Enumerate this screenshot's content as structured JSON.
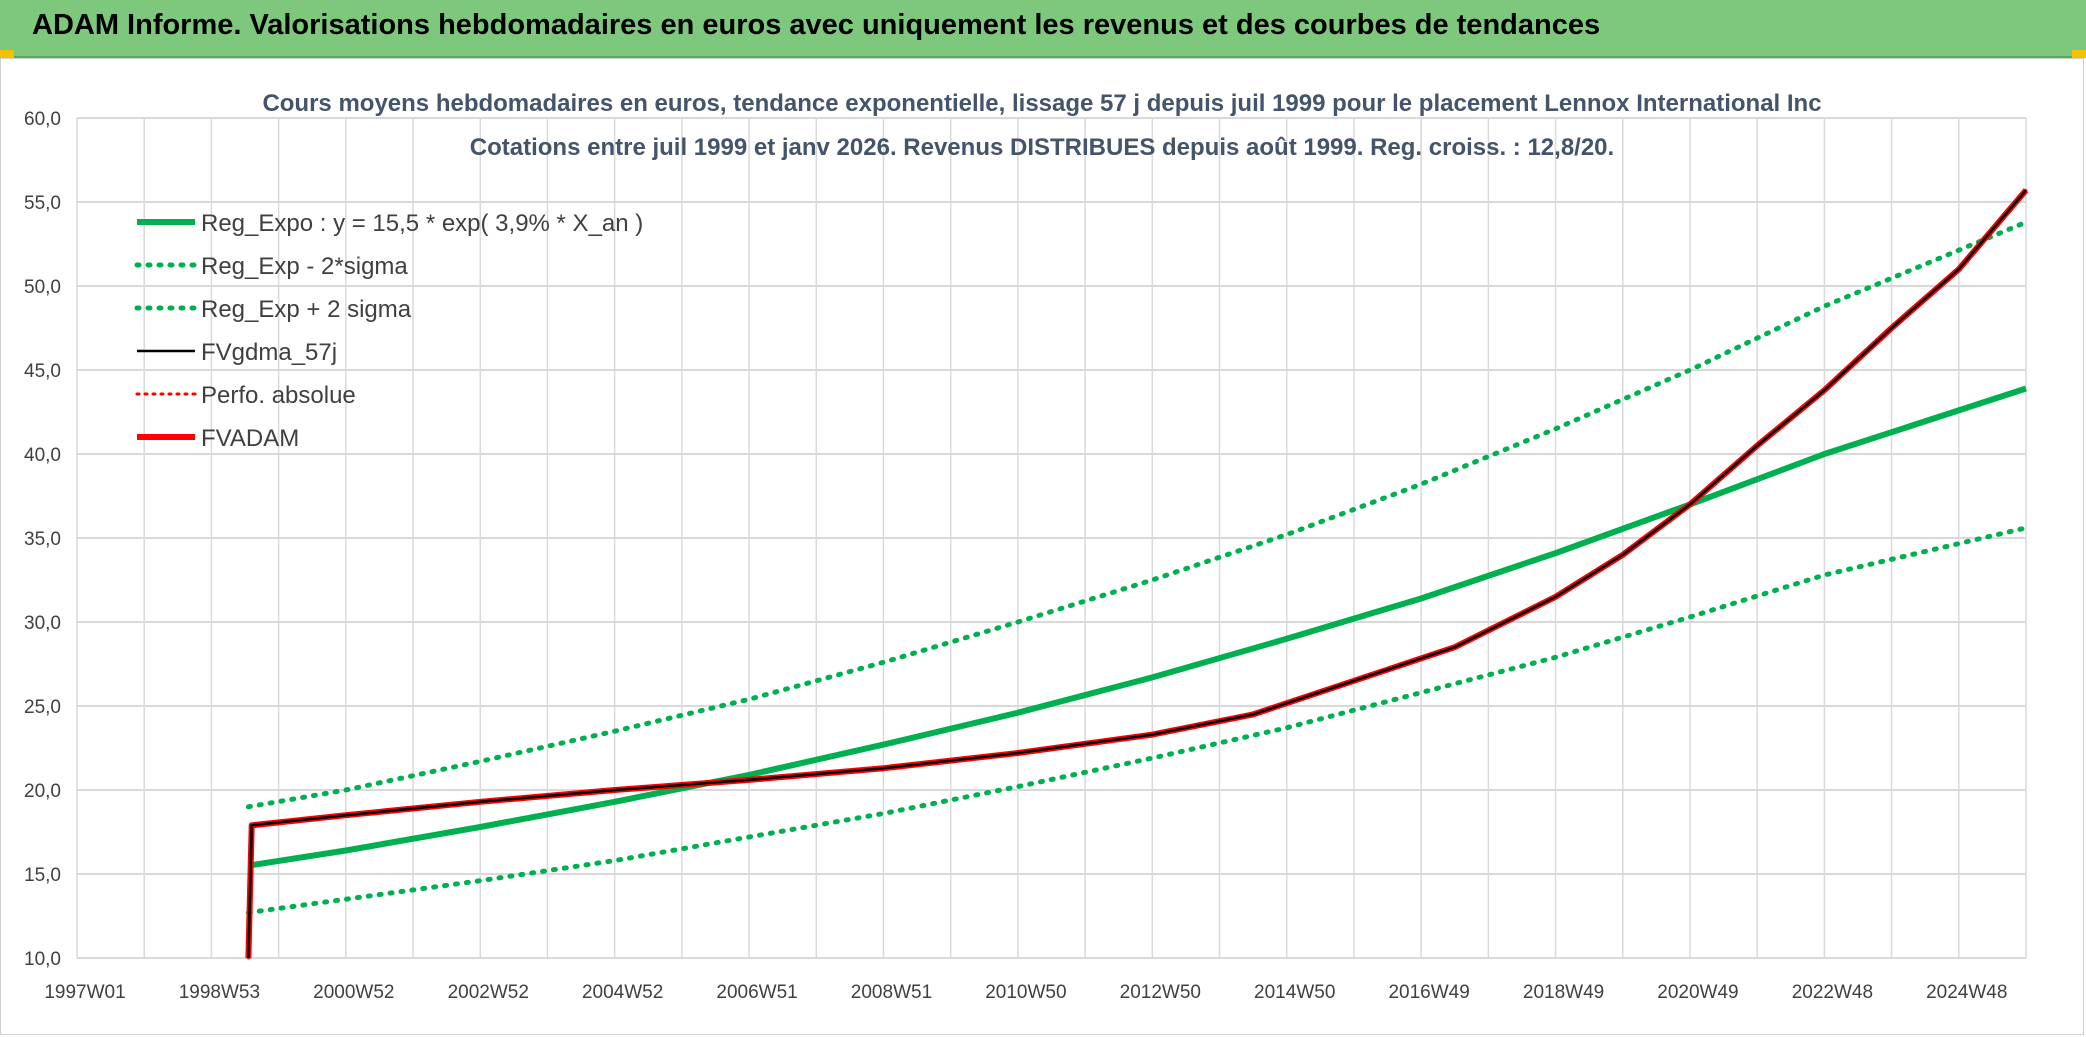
{
  "header": {
    "title": "ADAM Informe. Valorisations hebdomadaires en euros avec uniquement les revenus et des courbes de tendances"
  },
  "colors": {
    "header_bg": "#7dc87d",
    "green": "#00b050",
    "red": "#ff0000",
    "black": "#000000",
    "grid": "#d9d9d9"
  },
  "chart_data": {
    "type": "line",
    "title": "Cours moyens hebdomadaires en euros, tendance exponentielle, lissage 57 j depuis juil 1999 pour le placement Lennox International Inc",
    "subtitle": "Cotations entre juil 1999 et janv 2026. Revenus DISTRIBUES depuis août 1999. Reg. croiss. : 12,8/20.",
    "xlabel": "",
    "ylabel": "",
    "xlim": [
      1997.0,
      2026.0
    ],
    "ylim": [
      10,
      60
    ],
    "grid": true,
    "legend_position": "top-left",
    "y_ticks": [
      "10,0",
      "15,0",
      "20,0",
      "25,0",
      "30,0",
      "35,0",
      "40,0",
      "45,0",
      "50,0",
      "55,0",
      "60,0"
    ],
    "x_ticks": [
      "1997W01",
      "1998W53",
      "2000W52",
      "2002W52",
      "2004W52",
      "2006W51",
      "2008W51",
      "2010W50",
      "2012W50",
      "2014W50",
      "2016W49",
      "2018W49",
      "2020W49",
      "2022W48",
      "2024W48"
    ],
    "series": [
      {
        "name": "Reg_Expo : y = 15,5 * exp( 3,9% *  X_an )",
        "style": "solid-green",
        "x": [
          1999.55,
          2001.0,
          2003.0,
          2005.0,
          2007.0,
          2009.0,
          2011.0,
          2013.0,
          2015.0,
          2017.0,
          2019.0,
          2021.0,
          2023.0,
          2026.0
        ],
        "y": [
          15.5,
          16.4,
          17.8,
          19.3,
          20.9,
          22.7,
          24.6,
          26.7,
          29.0,
          31.4,
          34.1,
          37.0,
          40.0,
          43.9
        ]
      },
      {
        "name": "Reg_Exp - 2*sigma",
        "style": "dotted-green",
        "x": [
          1999.55,
          2001.0,
          2003.0,
          2005.0,
          2007.0,
          2009.0,
          2011.0,
          2013.0,
          2015.0,
          2017.0,
          2019.0,
          2021.0,
          2023.0,
          2026.0
        ],
        "y": [
          12.7,
          13.5,
          14.6,
          15.8,
          17.2,
          18.6,
          20.2,
          21.9,
          23.7,
          25.8,
          27.9,
          30.3,
          32.8,
          35.6
        ]
      },
      {
        "name": "Reg_Exp + 2 sigma",
        "style": "dotted-green",
        "x": [
          1999.55,
          2001.0,
          2003.0,
          2005.0,
          2007.0,
          2009.0,
          2011.0,
          2013.0,
          2015.0,
          2017.0,
          2019.0,
          2021.0,
          2023.0,
          2026.0
        ],
        "y": [
          19.0,
          20.0,
          21.7,
          23.5,
          25.4,
          27.6,
          30.0,
          32.5,
          35.2,
          38.2,
          41.5,
          45.0,
          48.8,
          53.8
        ]
      },
      {
        "name": "FVgdma_57j",
        "style": "solid-black",
        "x": [
          1999.55,
          1999.6,
          2001.0,
          2003.0,
          2005.0,
          2007.0,
          2009.0,
          2011.0,
          2013.0,
          2014.5,
          2016.0,
          2017.5,
          2019.0,
          2020.0,
          2021.0,
          2022.0,
          2023.0,
          2024.0,
          2025.0,
          2026.0
        ],
        "y": [
          10.0,
          17.9,
          18.5,
          19.3,
          20.0,
          20.6,
          21.3,
          22.2,
          23.3,
          24.5,
          26.5,
          28.5,
          31.5,
          34.0,
          37.0,
          40.5,
          43.8,
          47.5,
          51.0,
          55.7
        ]
      },
      {
        "name": "Perfo. absolue",
        "style": "dotted-red",
        "x": [
          1999.55,
          1999.6,
          2001.0,
          2003.0,
          2005.0,
          2007.0,
          2009.0,
          2011.0,
          2013.0,
          2014.5,
          2016.0,
          2017.5,
          2019.0,
          2020.0,
          2021.0,
          2022.0,
          2023.0,
          2024.0,
          2025.0,
          2026.0
        ],
        "y": [
          10.0,
          17.9,
          18.5,
          19.3,
          20.0,
          20.6,
          21.3,
          22.2,
          23.3,
          24.5,
          26.5,
          28.5,
          31.5,
          34.0,
          37.0,
          40.5,
          43.8,
          47.5,
          51.0,
          55.7
        ]
      },
      {
        "name": "FVADAM",
        "style": "solid-red",
        "x": [
          1999.55,
          1999.6,
          2001.0,
          2003.0,
          2005.0,
          2007.0,
          2009.0,
          2011.0,
          2013.0,
          2014.5,
          2016.0,
          2017.5,
          2019.0,
          2020.0,
          2021.0,
          2022.0,
          2023.0,
          2024.0,
          2025.0,
          2026.0
        ],
        "y": [
          10.0,
          17.9,
          18.5,
          19.3,
          20.0,
          20.6,
          21.3,
          22.2,
          23.3,
          24.5,
          26.5,
          28.5,
          31.5,
          34.0,
          37.0,
          40.5,
          43.8,
          47.5,
          51.0,
          55.7
        ]
      }
    ]
  }
}
